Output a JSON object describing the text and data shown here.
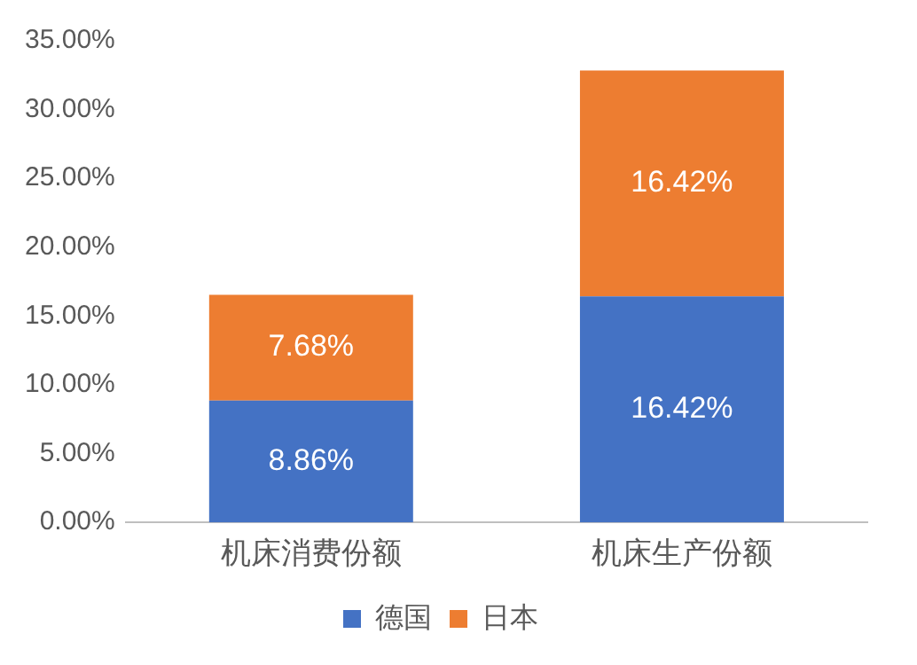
{
  "chart_data": {
    "type": "bar",
    "stacked": true,
    "categories": [
      "机床消费份额",
      "机床生产份额"
    ],
    "series": [
      {
        "name": "德国",
        "color": "#4472c4",
        "values": [
          8.86,
          16.42
        ],
        "value_labels": [
          "8.86%",
          "16.42%"
        ]
      },
      {
        "name": "日本",
        "color": "#ed7d31",
        "values": [
          7.68,
          16.42
        ],
        "value_labels": [
          "7.68%",
          "16.42%"
        ]
      }
    ],
    "ylim": [
      0,
      35
    ],
    "yticks": [
      {
        "value": 0,
        "label": "0.00%"
      },
      {
        "value": 5,
        "label": "5.00%"
      },
      {
        "value": 10,
        "label": "10.00%"
      },
      {
        "value": 15,
        "label": "15.00%"
      },
      {
        "value": 20,
        "label": "20.00%"
      },
      {
        "value": 25,
        "label": "25.00%"
      },
      {
        "value": 30,
        "label": "30.00%"
      },
      {
        "value": 35,
        "label": "35.00%"
      }
    ],
    "grid": false,
    "legend": "bottom"
  }
}
